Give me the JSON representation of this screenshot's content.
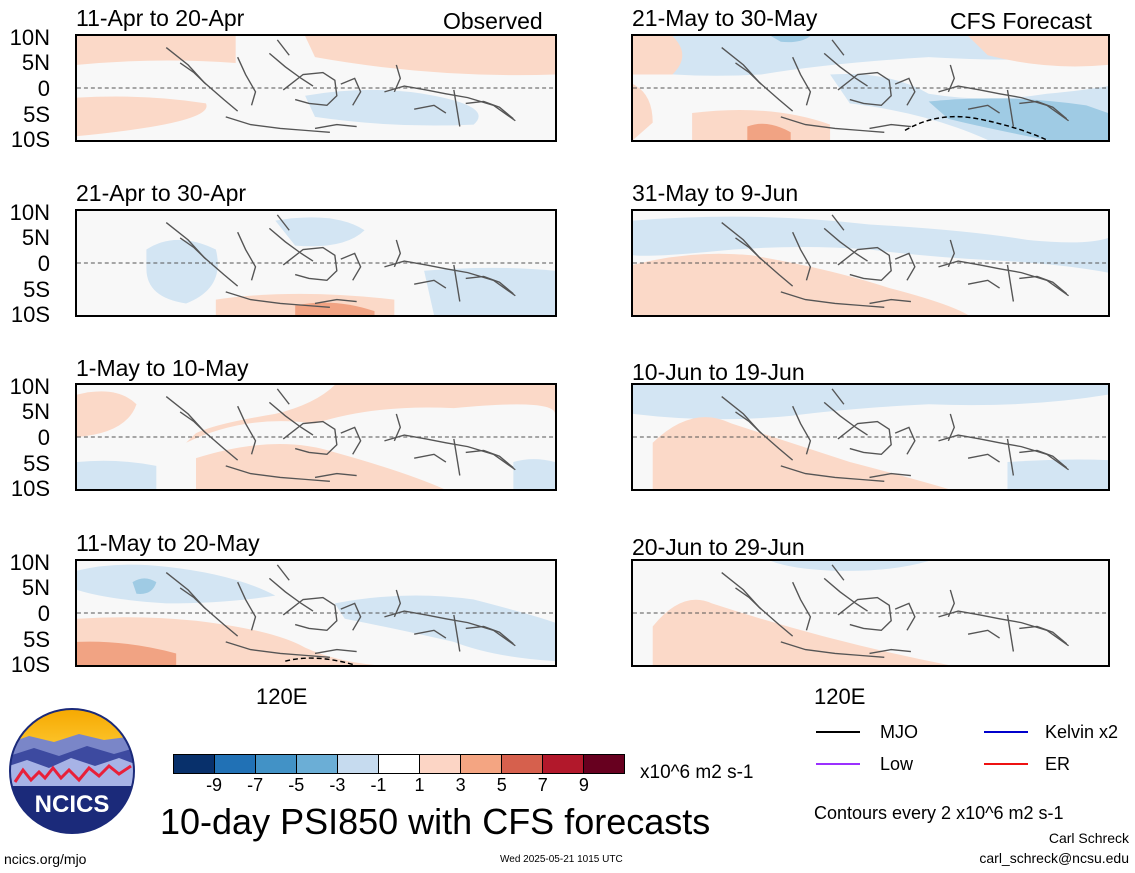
{
  "header": {
    "left_label": "Observed",
    "right_label": "CFS Forecast"
  },
  "panels_left": [
    {
      "title": "11-Apr to 20-Apr"
    },
    {
      "title": "21-Apr to 30-Apr"
    },
    {
      "title": "1-May to 10-May"
    },
    {
      "title": "11-May to 20-May"
    }
  ],
  "panels_right": [
    {
      "title": "21-May to 30-May"
    },
    {
      "title": "31-May to 9-Jun"
    },
    {
      "title": "10-Jun to 19-Jun"
    },
    {
      "title": "20-Jun to 29-Jun"
    }
  ],
  "chart_data": {
    "type": "heatmap",
    "title": "10-day PSI850 with CFS forecasts",
    "y_ticks": [
      "10N",
      "5N",
      "0",
      "5S",
      "10S"
    ],
    "x_ticks": [
      "120E"
    ],
    "colorbar": {
      "tick_labels": [
        "-9",
        "-7",
        "-5",
        "-3",
        "-1",
        "1",
        "3",
        "5",
        "7",
        "9"
      ],
      "colors": [
        "#08306b",
        "#2171b5",
        "#4292c6",
        "#6baed6",
        "#c6dbef",
        "#ffffff",
        "#fcd5c5",
        "#f4a582",
        "#d6604d",
        "#b2182b",
        "#67001f"
      ],
      "units": "x10^6 m2 s-1"
    }
  },
  "legend": {
    "items": [
      {
        "label": "MJO",
        "color": "#000000"
      },
      {
        "label": "Kelvin x2",
        "color": "#0000cc"
      },
      {
        "label": "Low",
        "color": "#9b30ff"
      },
      {
        "label": "ER",
        "color": "#ee1111"
      }
    ],
    "contours_note": "Contours every 2 x10^6 m2 s-1"
  },
  "footer": {
    "logo_text": "NCICS",
    "site": "ncics.org/mjo",
    "timestamp": "Wed 2025-05-21 1015 UTC",
    "author": "Carl Schreck",
    "email": "carl_schreck@ncsu.edu"
  }
}
